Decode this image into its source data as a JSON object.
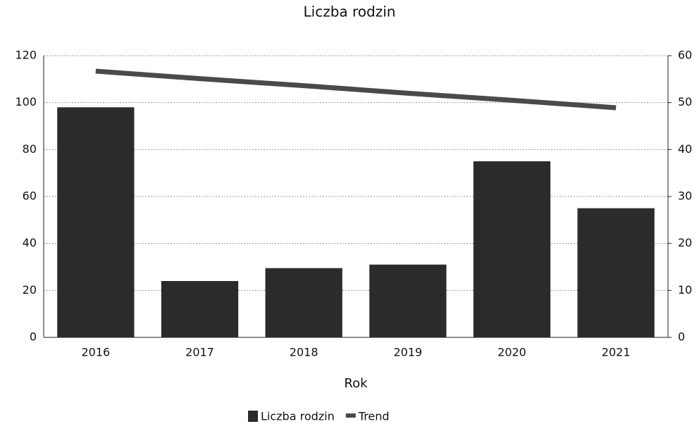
{
  "chart_data": {
    "type": "bar",
    "title": "Liczba rodzin",
    "x_label": "Rok",
    "categories": [
      "2016",
      "2017",
      "2018",
      "2019",
      "2020",
      "2021"
    ],
    "series": [
      {
        "name": "Liczba rodzin",
        "type": "bar",
        "color": "#2b2b2b",
        "values": [
          98,
          24,
          29.5,
          31,
          75,
          55
        ]
      },
      {
        "name": "Trend",
        "type": "line",
        "axis": "y2",
        "color": "#4a4a4a",
        "values": [
          56.7,
          55.1,
          53.6,
          52.0,
          50.5,
          48.9
        ]
      }
    ],
    "ylim": [
      0,
      120
    ],
    "yticks": [
      0,
      20,
      40,
      60,
      80,
      100,
      120
    ],
    "y2lim": [
      0,
      60
    ],
    "y2ticks": [
      0,
      10,
      20,
      30,
      40,
      50,
      60
    ],
    "grid": true,
    "legend": "bottom"
  }
}
